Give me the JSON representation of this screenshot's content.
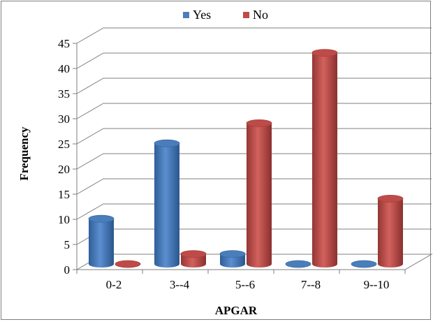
{
  "chart_data": {
    "type": "bar",
    "title": "",
    "xlabel": "APGAR",
    "ylabel": "Frequency",
    "categories": [
      "0-2",
      "3--4",
      "5--6",
      "7--8",
      "9--10"
    ],
    "series": [
      {
        "name": "Yes",
        "values": [
          9,
          24,
          2,
          0,
          0
        ],
        "color": "#4a7ebb"
      },
      {
        "name": "No",
        "values": [
          0,
          2,
          28,
          42,
          13
        ],
        "color": "#be4b48"
      }
    ],
    "ylim": [
      0,
      45
    ],
    "yticks": [
      "0",
      "5",
      "10",
      "15",
      "20",
      "25",
      "30",
      "35",
      "40",
      "45"
    ],
    "grid": true,
    "legend_position": "top",
    "style": "3d-cylinder"
  }
}
